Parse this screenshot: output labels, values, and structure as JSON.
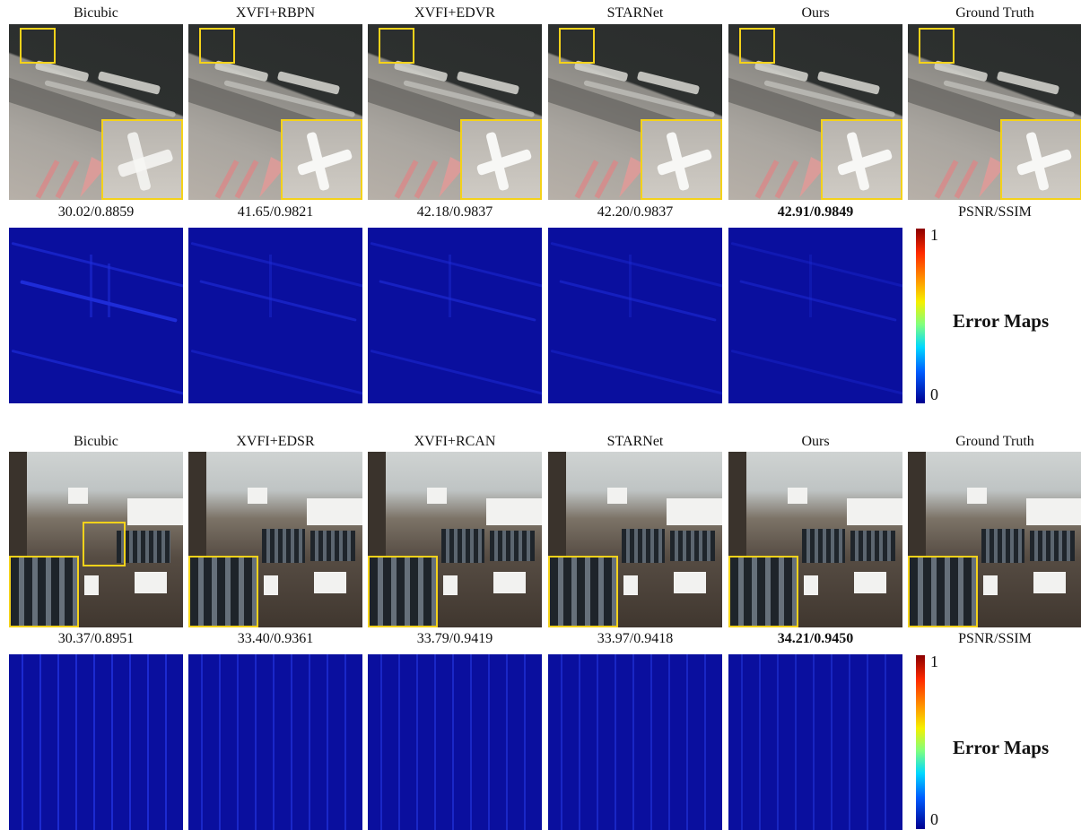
{
  "figure": {
    "row1": {
      "titles": [
        "Bicubic",
        "XVFI+RBPN",
        "XVFI+EDVR",
        "STARNet",
        "Ours",
        "Ground Truth"
      ],
      "scores": [
        "30.02/0.8859",
        "41.65/0.9821",
        "42.18/0.9837",
        "42.20/0.9837",
        "42.91/0.9849",
        "PSNR/SSIM"
      ],
      "best_index": 4
    },
    "row2": {
      "titles": [
        "Bicubic",
        "XVFI+EDSR",
        "XVFI+RCAN",
        "STARNet",
        "Ours",
        "Ground Truth"
      ],
      "scores": [
        "30.37/0.8951",
        "33.40/0.9361",
        "33.79/0.9419",
        "33.97/0.9418",
        "34.21/0.9450",
        "PSNR/SSIM"
      ],
      "best_index": 4
    },
    "colorbar": {
      "max_label": "1",
      "min_label": "0"
    },
    "error_maps_label": "Error Maps"
  },
  "colors": {
    "zoom_box": "#f4d21a",
    "error_map_bg": "#0a0f9e"
  }
}
